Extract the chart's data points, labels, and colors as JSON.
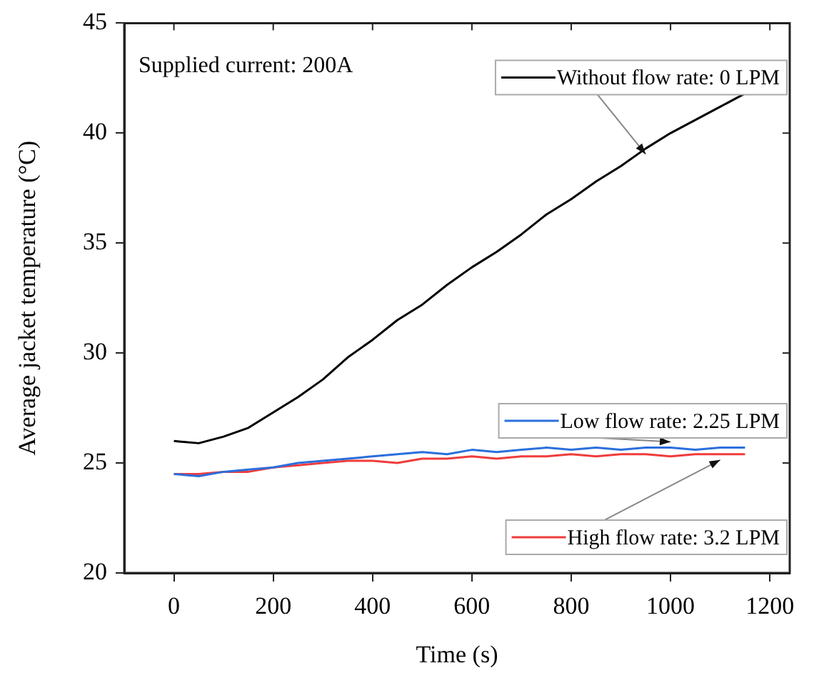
{
  "chart_data": {
    "type": "line",
    "xlabel": "Time (s)",
    "ylabel": "Average jacket temperature (°C)",
    "x": [
      0,
      50,
      100,
      150,
      200,
      250,
      300,
      350,
      400,
      450,
      500,
      550,
      600,
      650,
      700,
      750,
      800,
      850,
      900,
      950,
      1000,
      1050,
      1100,
      1150
    ],
    "xlim": [
      -100,
      1240
    ],
    "xticks": [
      0,
      200,
      400,
      600,
      800,
      1000,
      1200
    ],
    "ylim": [
      20,
      45
    ],
    "yticks": [
      20,
      25,
      30,
      35,
      40,
      45
    ],
    "grid": false,
    "legend": "right",
    "marker": "none",
    "line_style": "solid",
    "annotations": [
      "Supplied current: 200A"
    ],
    "series": [
      {
        "name": "Without flow rate: 0 LPM",
        "color": "#000000",
        "values": [
          26.0,
          25.9,
          26.2,
          26.6,
          27.3,
          28.0,
          28.8,
          29.8,
          30.6,
          31.5,
          32.2,
          33.1,
          33.9,
          34.6,
          35.4,
          36.3,
          37.0,
          37.8,
          38.5,
          39.3,
          40.0,
          40.6,
          41.2,
          41.8
        ]
      },
      {
        "name": "Low flow rate: 2.25 LPM",
        "color": "#2b6fdc",
        "values": [
          24.5,
          24.4,
          24.6,
          24.7,
          24.8,
          25.0,
          25.1,
          25.2,
          25.3,
          25.4,
          25.5,
          25.4,
          25.6,
          25.5,
          25.6,
          25.7,
          25.6,
          25.7,
          25.6,
          25.7,
          25.7,
          25.6,
          25.7,
          25.7
        ]
      },
      {
        "name": "High flow rate: 3.2 LPM",
        "color": "#f03c3c",
        "values": [
          24.5,
          24.5,
          24.6,
          24.6,
          24.8,
          24.9,
          25.0,
          25.1,
          25.1,
          25.0,
          25.2,
          25.2,
          25.3,
          25.2,
          25.3,
          25.3,
          25.4,
          25.3,
          25.4,
          25.4,
          25.3,
          25.4,
          25.4,
          25.4
        ]
      }
    ]
  }
}
